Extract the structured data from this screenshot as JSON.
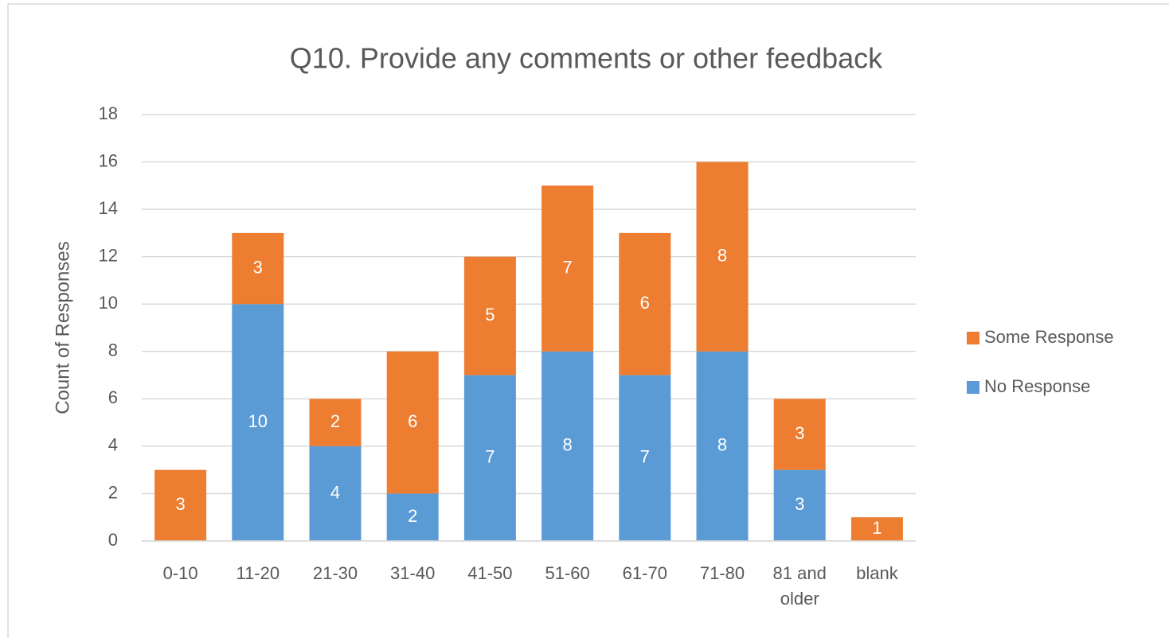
{
  "chart_data": {
    "type": "stacked_bar",
    "title": "Q10. Provide any comments or other feedback",
    "y_label": "Count of Responses",
    "categories": [
      "0-10",
      "11-20",
      "21-30",
      "31-40",
      "41-50",
      "51-60",
      "61-70",
      "71-80",
      "81 and older",
      "blank"
    ],
    "series": [
      {
        "name": "No Response",
        "color": "#5b9bd5",
        "values": [
          0,
          10,
          4,
          2,
          7,
          8,
          7,
          8,
          3,
          0
        ]
      },
      {
        "name": "Some Response",
        "color": "#ed7d31",
        "values": [
          3,
          3,
          2,
          6,
          5,
          7,
          6,
          8,
          3,
          1
        ]
      }
    ],
    "ylim": [
      0,
      18
    ],
    "yticks": [
      0,
      2,
      4,
      6,
      8,
      10,
      12,
      14,
      16,
      18
    ],
    "grid": true,
    "legend": "right"
  }
}
